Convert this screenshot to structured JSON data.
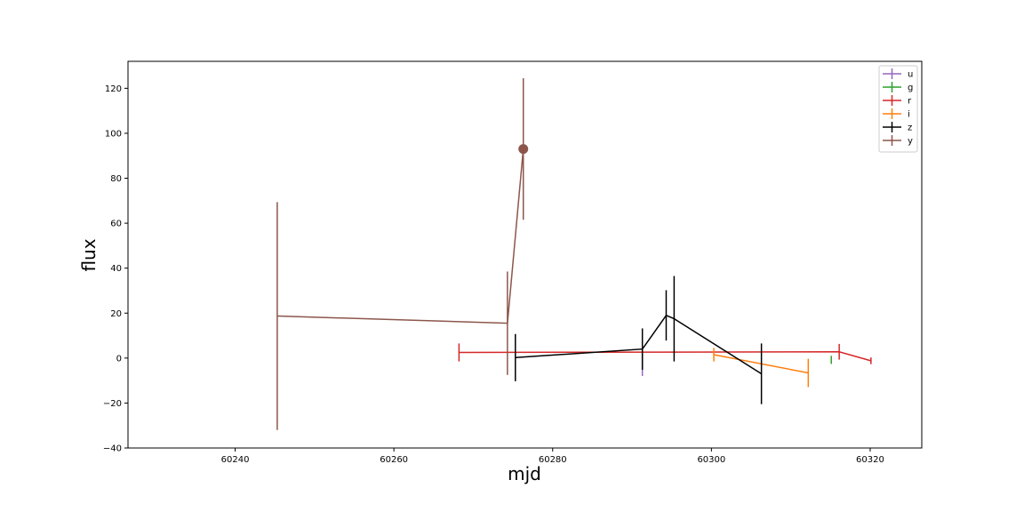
{
  "chart_data": {
    "type": "line",
    "title": "",
    "xlabel": "mjd",
    "ylabel": "flux",
    "xlim": [
      60226.5,
      60326.5
    ],
    "ylim": [
      -40,
      132
    ],
    "xticks": [
      60240,
      60260,
      60280,
      60300,
      60320
    ],
    "yticks": [
      -40,
      -20,
      0,
      20,
      40,
      60,
      80,
      100,
      120
    ],
    "grid": false,
    "legend_position": "top-right",
    "series": [
      {
        "name": "u",
        "color": "#9467bd",
        "points": [
          {
            "x": 60291.3,
            "y": -3.0,
            "err": 5.0
          }
        ]
      },
      {
        "name": "g",
        "color": "#2ca02c",
        "points": [
          {
            "x": 60315.1,
            "y": -0.8,
            "err": 1.8
          }
        ]
      },
      {
        "name": "r",
        "color": "#d62728",
        "points": [
          {
            "x": 60268.2,
            "y": 2.5,
            "err": 4.0
          },
          {
            "x": 60316.1,
            "y": 2.8,
            "err": 3.5
          },
          {
            "x": 60320.1,
            "y": -1.2,
            "err": 1.5
          }
        ]
      },
      {
        "name": "i",
        "color": "#ff7f0e",
        "points": [
          {
            "x": 60300.3,
            "y": 1.5,
            "err": 3.0
          },
          {
            "x": 60312.2,
            "y": -6.6,
            "err": 6.3
          }
        ]
      },
      {
        "name": "z",
        "color": "#000000",
        "points": [
          {
            "x": 60275.3,
            "y": 0.2,
            "err": 10.5
          },
          {
            "x": 60291.3,
            "y": 4.0,
            "err": 9.2
          },
          {
            "x": 60294.3,
            "y": 19.0,
            "err": 11.2
          },
          {
            "x": 60295.3,
            "y": 17.5,
            "err": 19.0
          },
          {
            "x": 60306.3,
            "y": -7.0,
            "err": 13.5
          }
        ]
      },
      {
        "name": "y",
        "color": "#8c564b",
        "highlight_index": 2,
        "points": [
          {
            "x": 60245.3,
            "y": 18.7,
            "err": 50.7
          },
          {
            "x": 60274.3,
            "y": 15.5,
            "err": 23.0
          },
          {
            "x": 60276.3,
            "y": 93.0,
            "err": 31.5
          }
        ]
      }
    ]
  }
}
